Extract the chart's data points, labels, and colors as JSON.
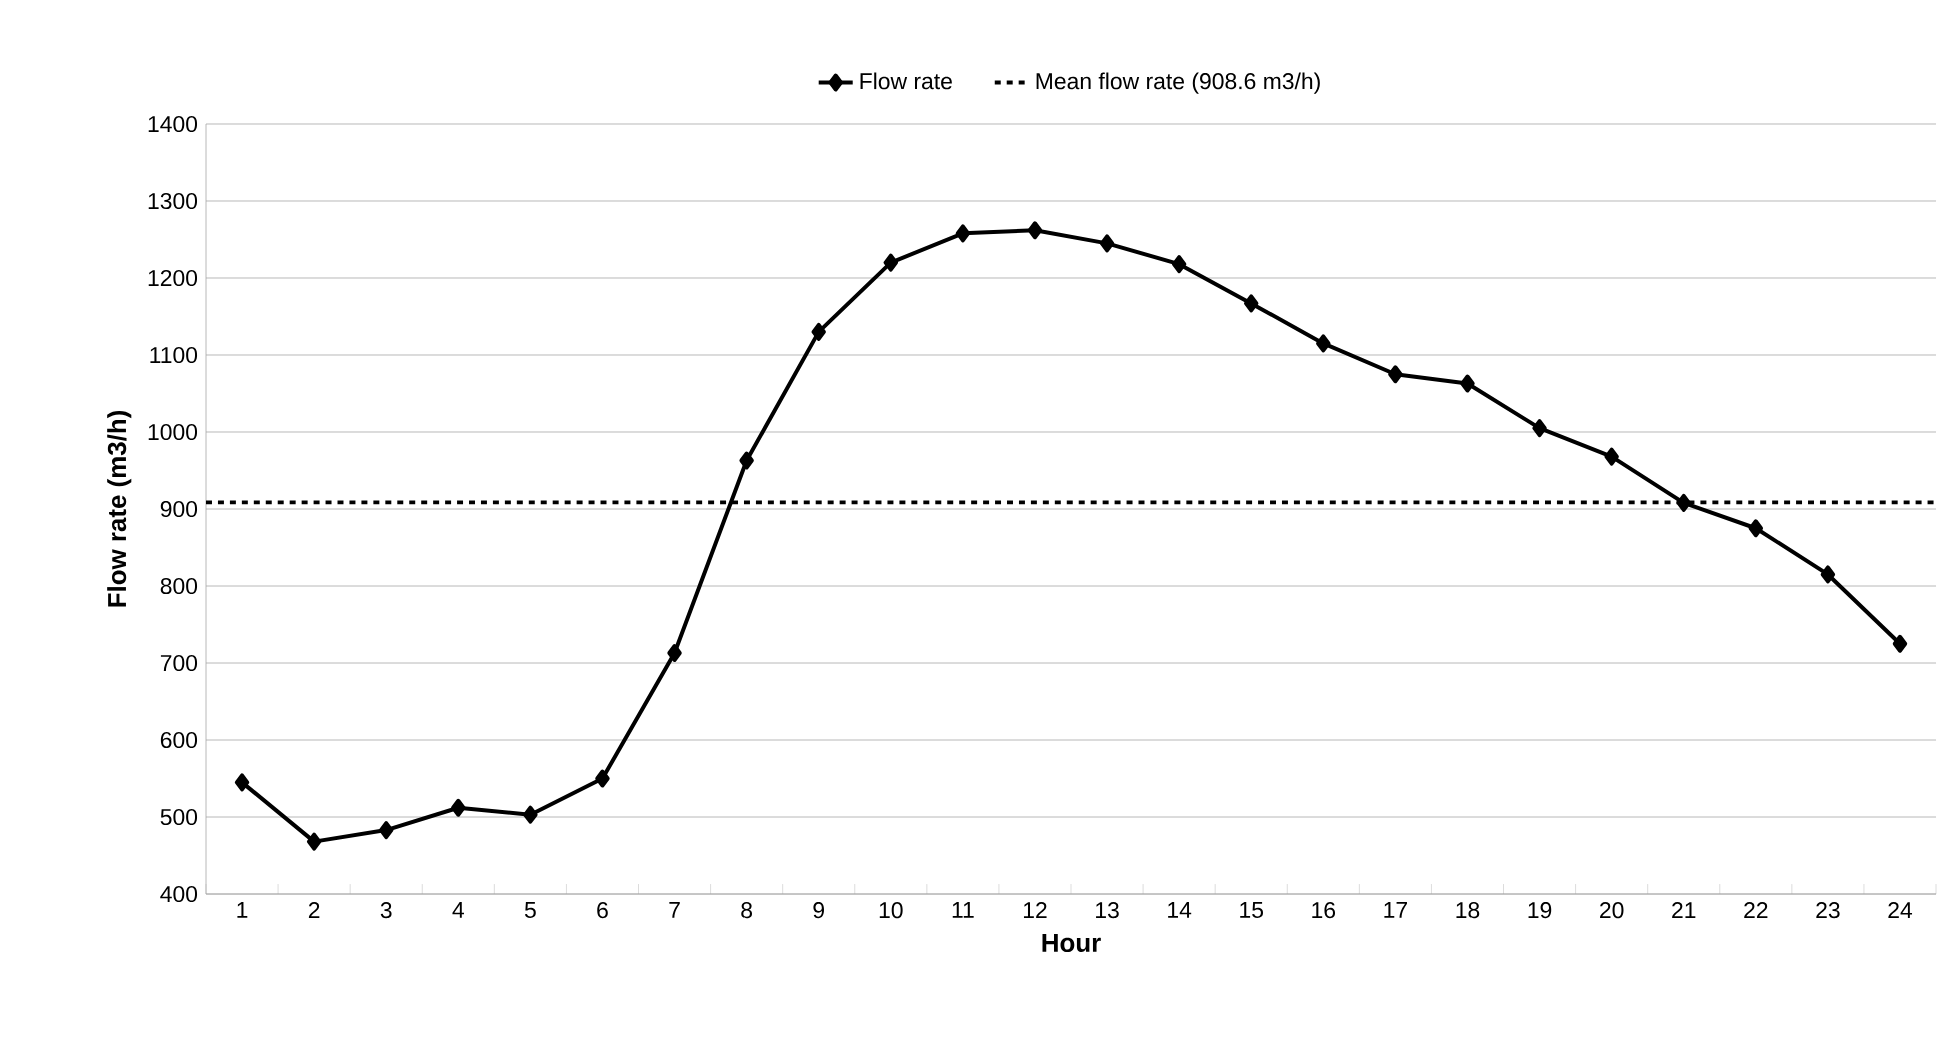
{
  "chart_data": {
    "type": "line",
    "xlabel": "Hour",
    "ylabel": "Flow rate (m3/h)",
    "categories": [
      "1",
      "2",
      "3",
      "4",
      "5",
      "6",
      "7",
      "8",
      "9",
      "10",
      "11",
      "12",
      "13",
      "14",
      "15",
      "16",
      "17",
      "18",
      "19",
      "20",
      "21",
      "22",
      "23",
      "24"
    ],
    "series": [
      {
        "name": "Flow rate",
        "color": "#000000",
        "values": [
          545,
          468,
          483,
          512,
          503,
          550,
          713,
          963,
          1130,
          1220,
          1258,
          1262,
          1245,
          1218,
          1167,
          1115,
          1075,
          1063,
          1005,
          968,
          908,
          875,
          815,
          725
        ]
      }
    ],
    "ref_lines": [
      {
        "axis": "y",
        "value": 908.6,
        "label": "Mean flow rate (908.6 m3/h)",
        "color": "#000000",
        "line_style": "dashed"
      }
    ],
    "ylim": [
      400,
      1400
    ],
    "yticks": [
      400,
      500,
      600,
      700,
      800,
      900,
      1000,
      1100,
      1200,
      1300,
      1400
    ],
    "grid": "y",
    "legend": "top",
    "marker": "diamond",
    "line_style": "solid"
  }
}
